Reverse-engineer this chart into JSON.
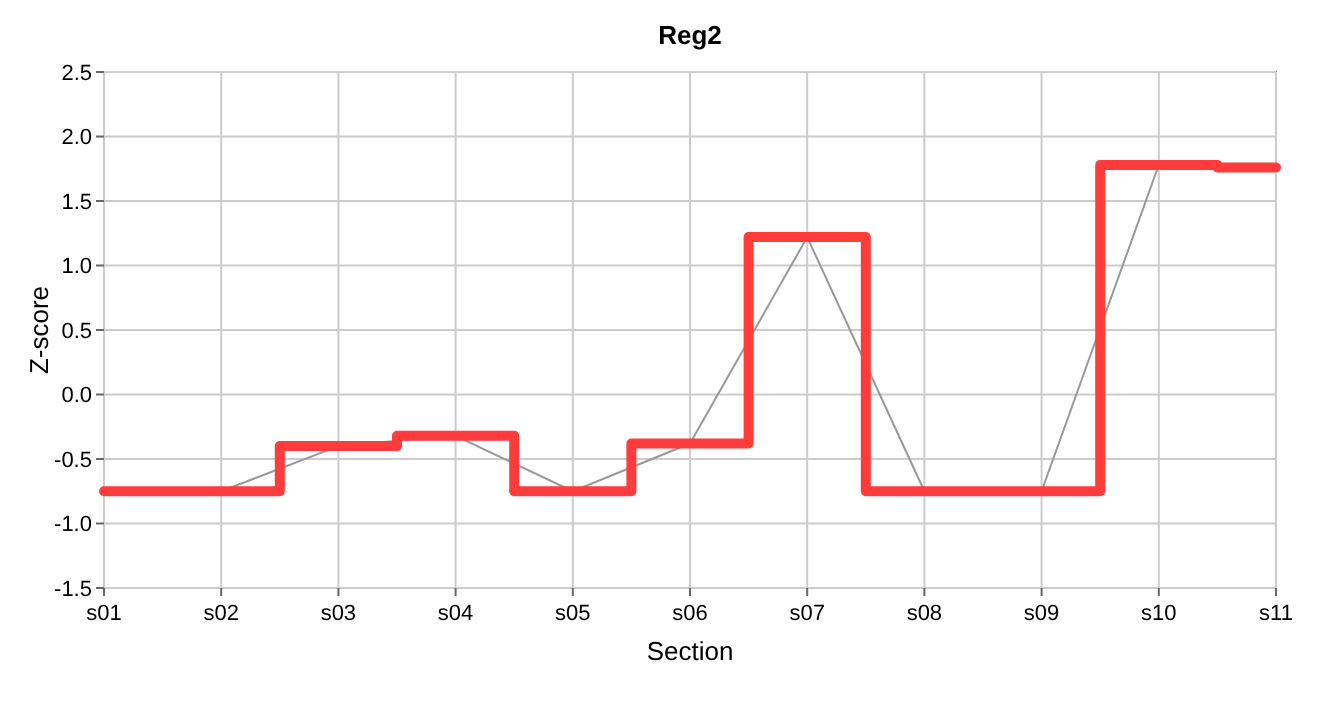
{
  "chart_data": {
    "type": "step",
    "title": "Reg2",
    "xlabel": "Section",
    "ylabel": "Z-score",
    "categories": [
      "s01",
      "s02",
      "s03",
      "s04",
      "s05",
      "s06",
      "s07",
      "s08",
      "s09",
      "s10",
      "s11"
    ],
    "series": [
      {
        "type": "line",
        "color": "#999999",
        "values": [
          -0.75,
          -0.75,
          -0.4,
          -0.32,
          -0.75,
          -0.38,
          1.22,
          -0.75,
          -0.75,
          1.78,
          1.76
        ]
      },
      {
        "color": "#ff3b3b",
        "values": [
          -0.75,
          -0.75,
          -0.4,
          -0.32,
          -0.75,
          -0.38,
          1.22,
          -0.75,
          -0.75,
          1.78,
          1.76
        ]
      }
    ],
    "ylim": [
      -1.5,
      2.5
    ],
    "yticks": [
      {
        "value": -1.5,
        "label": "-1.5"
      },
      {
        "value": -1,
        "label": "-1.0"
      },
      {
        "value": -0.5,
        "label": "-0.5"
      },
      {
        "value": 0,
        "label": "0.0"
      },
      {
        "value": 0.5,
        "label": "0.5"
      },
      {
        "value": 1,
        "label": "1.0"
      },
      {
        "value": 1.5,
        "label": "1.5"
      },
      {
        "value": 2,
        "label": "2.0"
      },
      {
        "value": 2.5,
        "label": "2.5"
      }
    ],
    "grid": true
  }
}
